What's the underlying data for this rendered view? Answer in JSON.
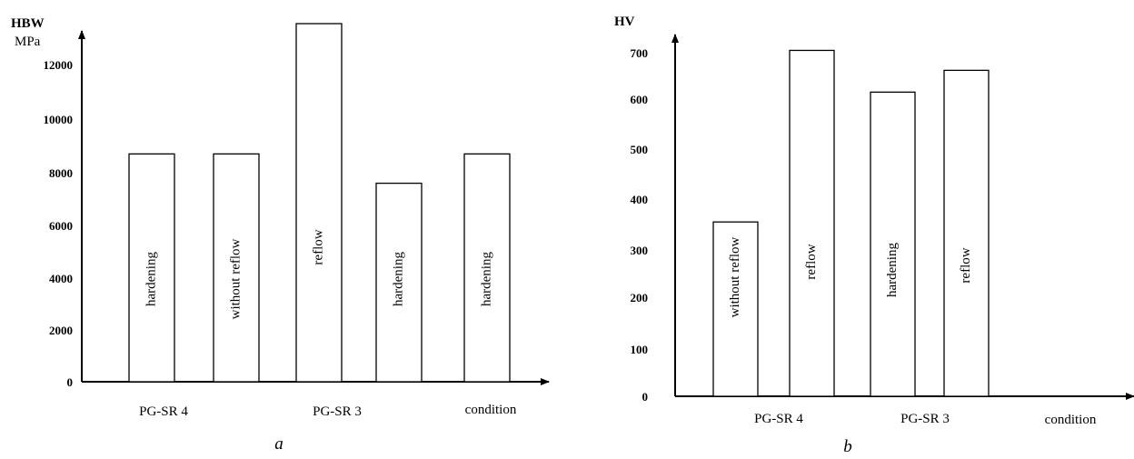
{
  "chart_data": [
    {
      "type": "bar",
      "panel_label": "a",
      "y_units": [
        "HBW",
        "MPa"
      ],
      "ylim": [
        0,
        14000
      ],
      "yticks": [
        0,
        2000,
        4000,
        6000,
        8000,
        10000,
        12000
      ],
      "group_labels": [
        "PG-SR 4",
        "PG-SR 3",
        "condition"
      ],
      "bars": [
        {
          "label": "hardening",
          "value": 8700
        },
        {
          "label": "without reflow",
          "value": 8700
        },
        {
          "label": "reflow",
          "value": 13500
        },
        {
          "label": "hardening",
          "value": 7600
        },
        {
          "label": "hardening",
          "value": 8700
        }
      ],
      "grid": false
    },
    {
      "type": "bar",
      "panel_label": "b",
      "y_units": [
        "HV"
      ],
      "ylim": [
        0,
        740
      ],
      "yticks": [
        0,
        100,
        200,
        300,
        400,
        500,
        600,
        700
      ],
      "group_labels": [
        "PG-SR 4",
        "PG-SR 3",
        "condition"
      ],
      "bars": [
        {
          "label": "without reflow",
          "value": 355
        },
        {
          "label": "reflow",
          "value": 705
        },
        {
          "label": "hardening",
          "value": 615
        },
        {
          "label": "reflow",
          "value": 662
        }
      ],
      "grid": false
    }
  ]
}
